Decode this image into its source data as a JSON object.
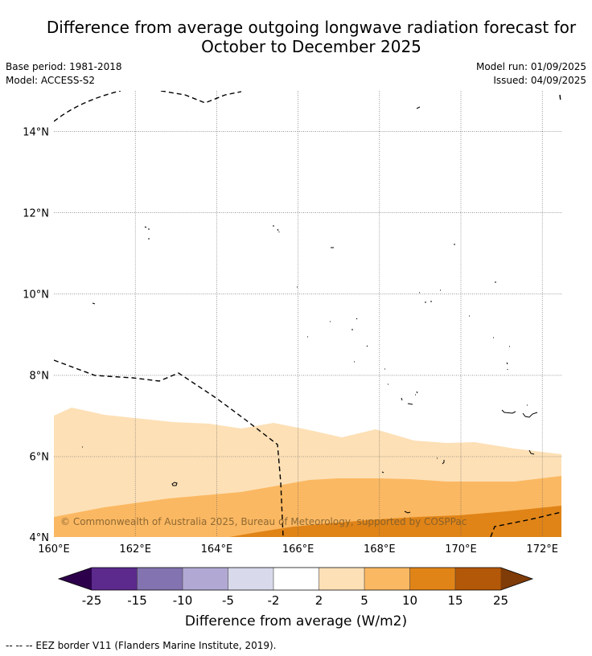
{
  "title": {
    "line1": "Difference from average outgoing longwave radiation forecast for",
    "line2": "October to December 2025"
  },
  "meta": {
    "base_period": "Base period: 1981-2018",
    "model": "Model: ACCESS-S2",
    "model_run": "Model run: 01/09/2025",
    "issued": "Issued: 04/09/2025"
  },
  "map": {
    "copyright": "© Commonwealth of Australia 2025, Bureau of Meteorology, supported by COSPPac",
    "lon_labels": [
      "160°E",
      "162°E",
      "164°E",
      "166°E",
      "168°E",
      "170°E",
      "172°E"
    ],
    "lat_labels": [
      "4°N",
      "6°N",
      "8°N",
      "10°N",
      "12°N",
      "14°N"
    ]
  },
  "colorbar": {
    "ticks": [
      "-25",
      "-15",
      "-10",
      "-5",
      "-2",
      "2",
      "5",
      "10",
      "15",
      "25"
    ],
    "label": "Difference from average (W/m2)",
    "colors": {
      "lt_-25": "#2d004b",
      "-25_-15": "#5b2a8c",
      "-15_-10": "#8373b0",
      "-10_-5": "#b1a9d3",
      "-5_-2": "#d8daeb",
      "-2_2": "#ffffff",
      "2_5": "#fde0b6",
      "5_10": "#fbb862",
      "10_15": "#e08418",
      "15_25": "#b35808",
      "gt_25": "#7f3b08"
    }
  },
  "footnote": "--  --  -- EEZ border V11 (Flanders Marine Institute, 2019)."
}
